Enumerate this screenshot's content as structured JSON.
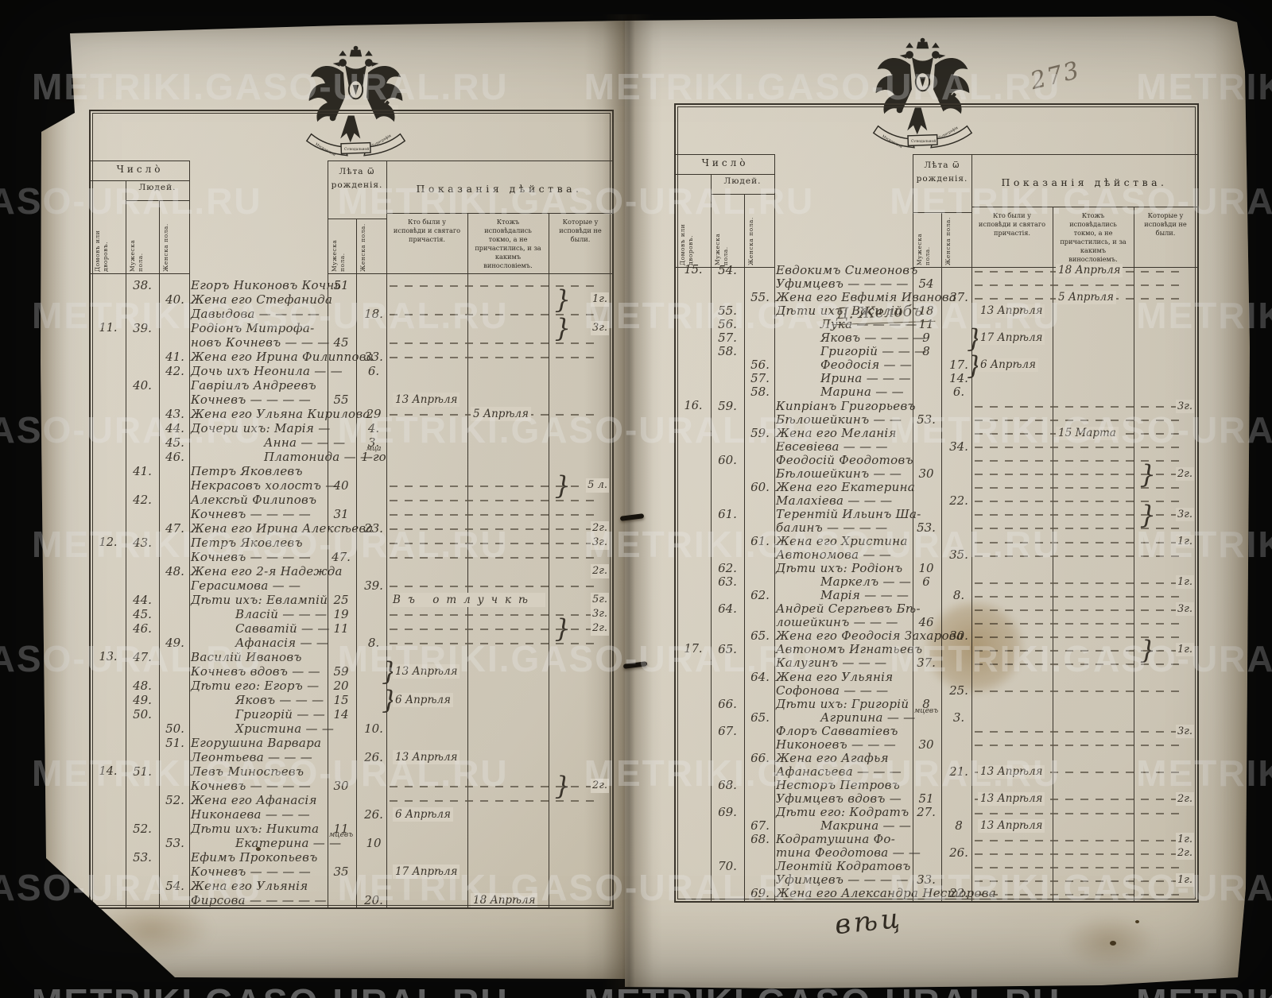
{
  "watermark": {
    "text": "METRIKI.GASO-URAL.RU"
  },
  "emblem": {
    "b1": "Московской",
    "b2": "Сѵнодальной",
    "b3": "Тѵпографіи"
  },
  "header": {
    "chislo": "Число̀",
    "lyudej": "Людей.",
    "dvorov": "Домовъ или дворовъ.",
    "muzheska": "Мужеска пола.",
    "zhenska": "Женска пола.",
    "leta": "Лѣта ѿ рожденія.",
    "pokazaniya": "Показанія дѣйства.",
    "act1": "Кто были у исповѣди и святаго причастія.",
    "act2": "Ктожъ исповѣдались токмо, а не причастились, и за какимъ винословіемъ.",
    "act3": "Которые у исповѣди не были."
  },
  "page_left": {
    "rows": [
      {
        "m": "38.",
        "nm": "Егоръ Никоновъ Кочнь",
        "am": "51",
        "ld": 1
      },
      {
        "f": "40.",
        "nm": "Жена его Стефанида",
        "a3": "1г.",
        "b3": 1
      },
      {
        "nm": "Давыдова — — — —",
        "af": "18.",
        "ld": 1
      },
      {
        "h": "11.",
        "m": "39.",
        "nm": "Родіонъ Митрофа-",
        "a3": "3г.",
        "b3": 1
      },
      {
        "nm": "новъ Кочневъ — — —",
        "am": "45",
        "ld": 1
      },
      {
        "f": "41.",
        "nm": "Жена его Ирина Филиппова",
        "af": "33.",
        "ld": 1
      },
      {
        "f": "42.",
        "nm": "Дочь ихъ Неонила — —",
        "af": "6."
      },
      {
        "m": "40.",
        "nm": "Гавріилъ Андреевъ"
      },
      {
        "nm": "Кочневъ — — — —",
        "am": "55",
        "a1": "13 Апрѣля"
      },
      {
        "f": "43.",
        "nm": "Жена его Ульяна Кирилова",
        "af": "29",
        "a2": "5 Апрѣля",
        "ld": 1
      },
      {
        "f": "44.",
        "nm": "Дочери ихъ: Марія —",
        "af": "4."
      },
      {
        "f": "45.",
        "nm": "Анна — — —",
        "in": 2,
        "af": "3.",
        "afn": "мца"
      },
      {
        "f": "46.",
        "nm": "Платонида — —",
        "in": 2,
        "af": "1-го"
      },
      {
        "m": "41.",
        "nm": "Петръ Яковлевъ"
      },
      {
        "nm": "Некрасовъ холостъ —",
        "am": "40",
        "ld": 1,
        "a3": "5 л.",
        "b3": 1
      },
      {
        "m": "42.",
        "nm": "Алексѣй Филиповъ",
        "ld": 1
      },
      {
        "nm": "Кочневъ — — — —",
        "am": "31",
        "ld": 1
      },
      {
        "f": "47.",
        "nm": "Жена его Ирина Алексѣева",
        "af": "23.",
        "ld": 1,
        "a3": "2г."
      },
      {
        "h": "12.",
        "m": "43.",
        "nm": "Петръ Яковлевъ",
        "ld": 1,
        "a3": "3г."
      },
      {
        "nm": "Кочневъ — — — —",
        "am": "47.",
        "ld": 1
      },
      {
        "f": "48.",
        "nm": "Жена его 2-я Надежда",
        "a3": "2г."
      },
      {
        "nm": "Герасимова — —",
        "af": "39.",
        "ld": 1
      },
      {
        "m": "44.",
        "nm": "Дѣти ихъ: Евлампій",
        "am": "25",
        "w": "Въ отлучкѣ",
        "a3": "5г."
      },
      {
        "m": "45.",
        "nm": "Власій — — —",
        "in": 1,
        "am": "19",
        "ld": 1,
        "a3": "3г."
      },
      {
        "m": "46.",
        "nm": "Савватій — —",
        "in": 1,
        "am": "11",
        "ld": 1,
        "a3": "2г.",
        "b3": 1
      },
      {
        "f": "49.",
        "nm": "Афанасія — —",
        "in": 1,
        "af": "8.",
        "ld": 1
      },
      {
        "h": "13.",
        "m": "47.",
        "nm": "Василій Ивановъ"
      },
      {
        "nm": "Кочневъ вдовъ — —",
        "am": "59",
        "a1": "13 Апрѣля",
        "b1": 1
      },
      {
        "m": "48.",
        "nm": "Дѣти его: Егоръ —",
        "am": "20"
      },
      {
        "m": "49.",
        "nm": "Яковъ — — —",
        "in": 1,
        "am": "15",
        "a1": "6 Апрѣля",
        "b1": 1
      },
      {
        "m": "50.",
        "nm": "Григорій — —",
        "in": 1,
        "am": "14"
      },
      {
        "f": "50.",
        "nm": "Христина — —",
        "in": 1,
        "af": "10."
      },
      {
        "f": "51.",
        "nm": "Егорушина Варвара"
      },
      {
        "nm": "Леонтьева — — —",
        "af": "26.",
        "a1": "13 Апрѣля"
      },
      {
        "h": "14.",
        "m": "51.",
        "nm": "Левъ Миносѣевъ"
      },
      {
        "nm": "Кочневъ — — — —",
        "am": "30",
        "ld": 1,
        "a3": "2г.",
        "b3": 1
      },
      {
        "f": "52.",
        "nm": "Жена его Афанасія",
        "ld": 1
      },
      {
        "nm": "Никонаева — — —",
        "af": "26.",
        "a1": "6 Апрѣля"
      },
      {
        "m": "52.",
        "nm": "Дѣти ихъ: Никита",
        "am": "11",
        "amn": "мцевъ"
      },
      {
        "f": "53.",
        "nm": "Екатерина — —",
        "in": 1,
        "af": "10"
      },
      {
        "m": "53.",
        "nm": "Ефимъ Прокопьевъ"
      },
      {
        "nm": "Кочневъ — — — —",
        "am": "35",
        "a1": "17 Апрѣля"
      },
      {
        "f": "54.",
        "nm": "Жена его Ульянія"
      },
      {
        "nm": "Фирсова — — — — —",
        "af": "20.",
        "a2": "18 Апрѣля"
      }
    ]
  },
  "page_right": {
    "page_number": "273",
    "village_heading": "Д. Желобъ",
    "tailpiece": "вѣц",
    "rows": [
      {
        "h": "15.",
        "m": "54.",
        "nm": "Евдокимъ Симеоновъ",
        "a2": "18 Апрѣля",
        "ld": 1
      },
      {
        "nm": "Уфимцевъ — — — —",
        "am": "54",
        "ld": 1
      },
      {
        "f": "55.",
        "nm": "Жена его Евфимія Иванова",
        "af": "37.",
        "a2": "5 Апрѣля",
        "ld": 1
      },
      {
        "m": "55.",
        "nm": "Дѣти ихъ: Василій",
        "am": "18",
        "a1": "13 Апрѣля"
      },
      {
        "m": "56.",
        "nm": "Лука — — — —",
        "in": 1,
        "am": "11"
      },
      {
        "m": "57.",
        "nm": "Яковъ — — — —",
        "in": 1,
        "am": "9",
        "a1": "17 Апрѣля",
        "b1": 1
      },
      {
        "m": "58.",
        "nm": "Григорій — — —",
        "in": 1,
        "am": "8"
      },
      {
        "f": "56.",
        "nm": "Феодосія — —",
        "in": 1,
        "af": "17.",
        "a1": "6 Апрѣля",
        "b1": 1
      },
      {
        "f": "57.",
        "nm": "Ирина — — —",
        "in": 1,
        "af": "14."
      },
      {
        "f": "58.",
        "nm": "Марина — —",
        "in": 1,
        "af": "6."
      },
      {
        "h": "16.",
        "m": "59.",
        "nm": "Кипріанъ Григорьевъ",
        "ld": 1,
        "a3": "3г."
      },
      {
        "nm": "Бѣлошейкинъ — —",
        "am": "53.",
        "ld": 1
      },
      {
        "f": "59.",
        "nm": "Жена его Меланія",
        "a2": "15 Марта",
        "ld": 1
      },
      {
        "nm": "Евсевіева — — —",
        "af": "34.",
        "ld": 1
      },
      {
        "m": "60.",
        "nm": "Феодосій Феодотовъ",
        "ld": 1
      },
      {
        "nm": "Бѣлошейкинъ — —",
        "am": "30",
        "ld": 1,
        "a3": "2г.",
        "b3": 1
      },
      {
        "f": "60.",
        "nm": "Жена его Екатерина",
        "ld": 1
      },
      {
        "nm": "Малахіева — — —",
        "af": "22.",
        "ld": 1
      },
      {
        "m": "61.",
        "nm": "Терентій Ильинъ Ша-",
        "ld": 1,
        "a3": "3г.",
        "b3": 1
      },
      {
        "nm": "балинъ — — — —",
        "am": "53.",
        "ld": 1
      },
      {
        "f": "61.",
        "nm": "Жена его Христина",
        "ld": 1,
        "a3": "1г."
      },
      {
        "nm": "Автономова — —",
        "af": "35.",
        "ld": 1
      },
      {
        "m": "62.",
        "nm": "Дѣти ихъ: Родіонъ",
        "am": "10"
      },
      {
        "m": "63.",
        "nm": "Маркелъ — —",
        "in": 1,
        "am": "6",
        "ld": 1,
        "a3": "1г."
      },
      {
        "f": "62.",
        "nm": "Марія — — —",
        "in": 1,
        "af": "8.",
        "ld": 1
      },
      {
        "m": "64.",
        "nm": "Андрей Сергѣевъ Бѣ-",
        "ld": 1,
        "a3": "3г."
      },
      {
        "nm": "лошейкинъ — — —",
        "am": "46",
        "ld": 1
      },
      {
        "f": "65.",
        "nm": "Жена его Феодосія Захарова",
        "af": "30.",
        "ld": 1
      },
      {
        "h": "17.",
        "m": "65.",
        "nm": "Автономъ Игнатьевъ",
        "ld": 1,
        "a3": "1г.",
        "b3": 1
      },
      {
        "nm": "Калугинъ — — —",
        "am": "37.",
        "ld": 1
      },
      {
        "f": "64.",
        "nm": "Жена его Ульянія"
      },
      {
        "nm": "Софонова — — —",
        "af": "25.",
        "ld": 1
      },
      {
        "m": "66.",
        "nm": "Дѣти ихъ: Григорій",
        "am": "8",
        "amn": "мцевъ"
      },
      {
        "f": "65.",
        "nm": "Агрипина — —",
        "in": 1,
        "af": "3."
      },
      {
        "m": "67.",
        "nm": "Флоръ Савватіевъ",
        "ld": 1,
        "a3": "3г."
      },
      {
        "nm": "Никоноевъ — — —",
        "am": "30",
        "ld": 1
      },
      {
        "f": "66.",
        "nm": "Жена его Агафья"
      },
      {
        "nm": "Афанасьева — — —",
        "af": "21.",
        "a1": "13 Апрѣля",
        "ld": 1
      },
      {
        "m": "68.",
        "nm": "Несторъ Петровъ"
      },
      {
        "nm": "Уфимцевъ вдовъ —",
        "am": "51",
        "a1": "13 Апрѣля",
        "ld": 1,
        "a3": "2г."
      },
      {
        "m": "69.",
        "nm": "Дѣти его: Кодратъ",
        "am": "27.",
        "ld": 1
      },
      {
        "f": "67.",
        "nm": "Макрина — —",
        "in": 1,
        "af": "8",
        "a1": "13 Апрѣля"
      },
      {
        "f": "68.",
        "nm": "Кодратушина Фо-",
        "ld": 1,
        "a3": "1г."
      },
      {
        "nm": "тина Феодотова — —",
        "af": "26.",
        "ld": 1,
        "a3": "2г."
      },
      {
        "m": "70.",
        "nm": "Леонтій Кодратовъ",
        "ld": 1
      },
      {
        "nm": "Уфимцевъ — — — —",
        "am": "33.",
        "ld": 1,
        "a3": "1г."
      },
      {
        "f": "69.",
        "nm": "Жена его Александра Несторова",
        "af": "22.",
        "ld": 1
      }
    ]
  }
}
